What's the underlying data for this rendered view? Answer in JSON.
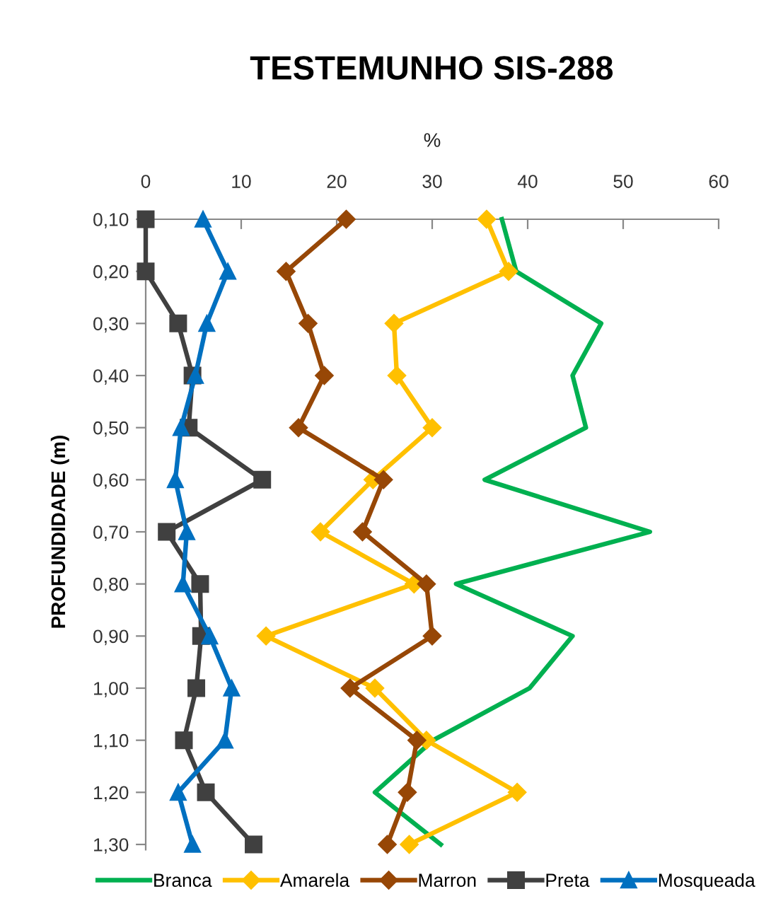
{
  "chart_data": {
    "type": "line",
    "orientation": "horizontal",
    "title": "TESTEMUNHO SIS-288",
    "xlabel": "%",
    "ylabel": "PROFUNDIDADE (m)",
    "categories": [
      "0,10",
      "0,20",
      "0,30",
      "0,40",
      "0,50",
      "0,60",
      "0,70",
      "0,80",
      "0,90",
      "1,00",
      "1,10",
      "1,20",
      "1,30"
    ],
    "xlim": [
      0,
      60
    ],
    "xticks": [
      0,
      10,
      20,
      30,
      40,
      50,
      60
    ],
    "grid": false,
    "legend": "bottom",
    "series": [
      {
        "name": "Branca",
        "color": "#00b050",
        "marker": "none",
        "values": [
          37.3,
          38.8,
          47.7,
          44.7,
          46.1,
          35.5,
          52.8,
          32.5,
          44.7,
          40.2,
          30.1,
          24.0,
          30.9
        ]
      },
      {
        "name": "Amarela",
        "color": "#ffc000",
        "marker": "diamond",
        "values": [
          35.7,
          38.0,
          26.0,
          26.3,
          30.0,
          23.8,
          18.3,
          28.1,
          12.6,
          24.0,
          29.4,
          38.9,
          27.6
        ]
      },
      {
        "name": "Marron",
        "color": "#974706",
        "marker": "diamond",
        "values": [
          21.0,
          14.7,
          17.0,
          18.7,
          16.0,
          24.9,
          22.7,
          29.4,
          30.0,
          21.4,
          28.4,
          27.4,
          25.3
        ]
      },
      {
        "name": "Preta",
        "color": "#404040",
        "marker": "square",
        "values": [
          0,
          0,
          3.4,
          4.9,
          4.5,
          12.2,
          2.2,
          5.7,
          5.8,
          5.3,
          4.0,
          6.3,
          11.3
        ]
      },
      {
        "name": "Mosqueada",
        "color": "#0070c0",
        "marker": "triangle",
        "values": [
          6.0,
          8.6,
          6.4,
          5.2,
          3.7,
          3.1,
          4.3,
          3.9,
          6.7,
          9.0,
          8.3,
          3.4,
          4.9
        ]
      }
    ]
  }
}
